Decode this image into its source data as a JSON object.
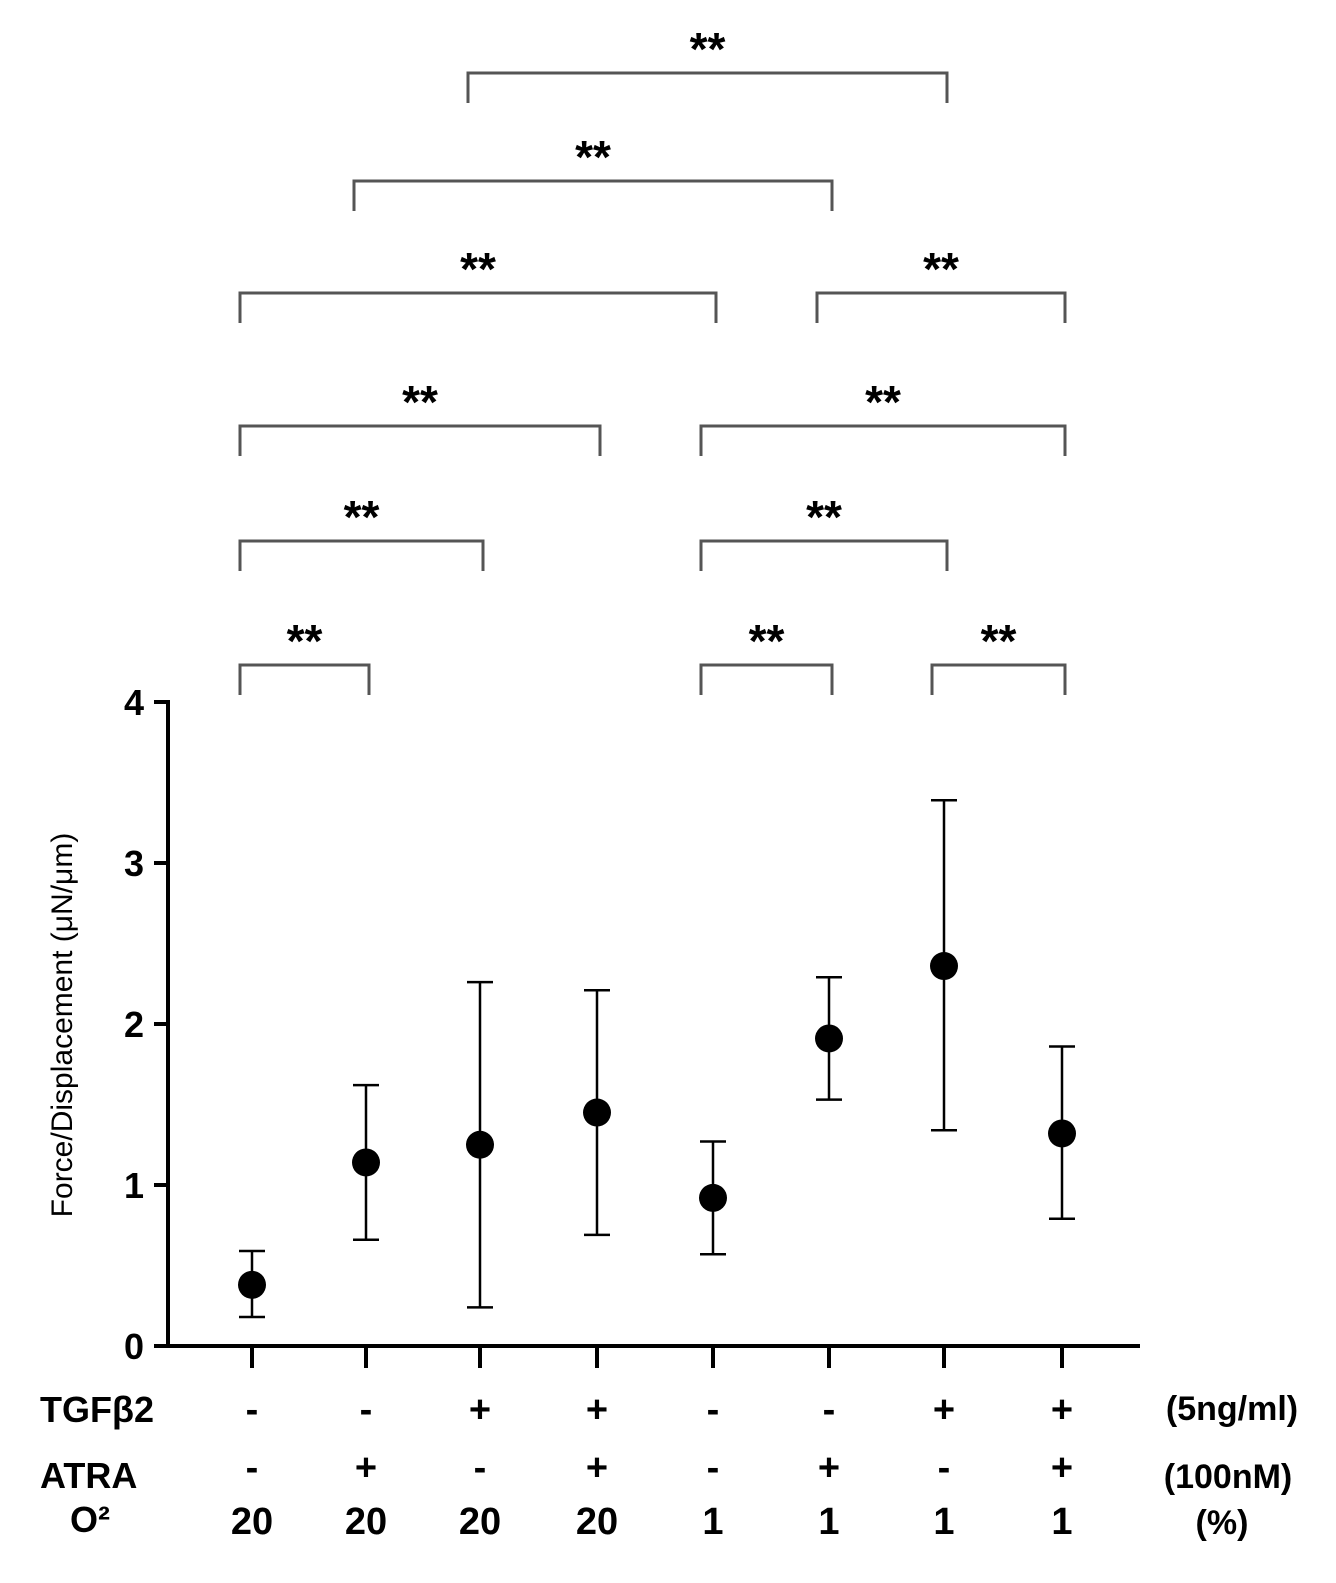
{
  "chart_data": {
    "type": "scatter",
    "title": "",
    "xlabel": "",
    "ylabel": "Force/Displacement (μN/μm)",
    "ylim": [
      0,
      4
    ],
    "yticks": [
      "0",
      "1",
      "2",
      "3",
      "4"
    ],
    "groups": [
      {
        "tgf": "-",
        "atra": "-",
        "o2": "20",
        "mean": 0.38,
        "err_low": 0.18,
        "err_high": 0.59
      },
      {
        "tgf": "-",
        "atra": "+",
        "o2": "20",
        "mean": 1.14,
        "err_low": 0.66,
        "err_high": 1.62
      },
      {
        "tgf": "+",
        "atra": "-",
        "o2": "20",
        "mean": 1.25,
        "err_low": 0.24,
        "err_high": 2.26
      },
      {
        "tgf": "+",
        "atra": "+",
        "o2": "20",
        "mean": 1.45,
        "err_low": 0.69,
        "err_high": 2.21
      },
      {
        "tgf": "-",
        "atra": "-",
        "o2": "1",
        "mean": 0.92,
        "err_low": 0.57,
        "err_high": 1.27
      },
      {
        "tgf": "-",
        "atra": "+",
        "o2": "1",
        "mean": 1.91,
        "err_low": 1.53,
        "err_high": 2.29
      },
      {
        "tgf": "+",
        "atra": "-",
        "o2": "1",
        "mean": 2.36,
        "err_low": 1.34,
        "err_high": 3.39
      },
      {
        "tgf": "+",
        "atra": "+",
        "o2": "1",
        "mean": 1.32,
        "err_low": 0.79,
        "err_high": 1.86
      }
    ],
    "row_labels": {
      "tgf": "TGFβ2",
      "atra": "ATRA",
      "o2": "O²"
    },
    "row_units": {
      "tgf": "(5ng/ml)",
      "atra": "(100nM)",
      "o2": "(%)"
    },
    "comparisons": [
      {
        "from": 0,
        "to": 1,
        "level": 0,
        "label": "**"
      },
      {
        "from": 4,
        "to": 5,
        "level": 0,
        "label": "**"
      },
      {
        "from": 6,
        "to": 7,
        "level": 0,
        "label": "**"
      },
      {
        "from": 0,
        "to": 2,
        "level": 1,
        "label": "**"
      },
      {
        "from": 4,
        "to": 6,
        "level": 1,
        "label": "**"
      },
      {
        "from": 0,
        "to": 3,
        "level": 2,
        "label": "**"
      },
      {
        "from": 4,
        "to": 7,
        "level": 2,
        "label": "**"
      },
      {
        "from": 0,
        "to": 4,
        "level": 3,
        "label": "**"
      },
      {
        "from": 5,
        "to": 7,
        "level": 3,
        "label": "**"
      },
      {
        "from": 1,
        "to": 5,
        "level": 4,
        "label": "**"
      },
      {
        "from": 2,
        "to": 6,
        "level": 5,
        "label": "**"
      }
    ]
  }
}
